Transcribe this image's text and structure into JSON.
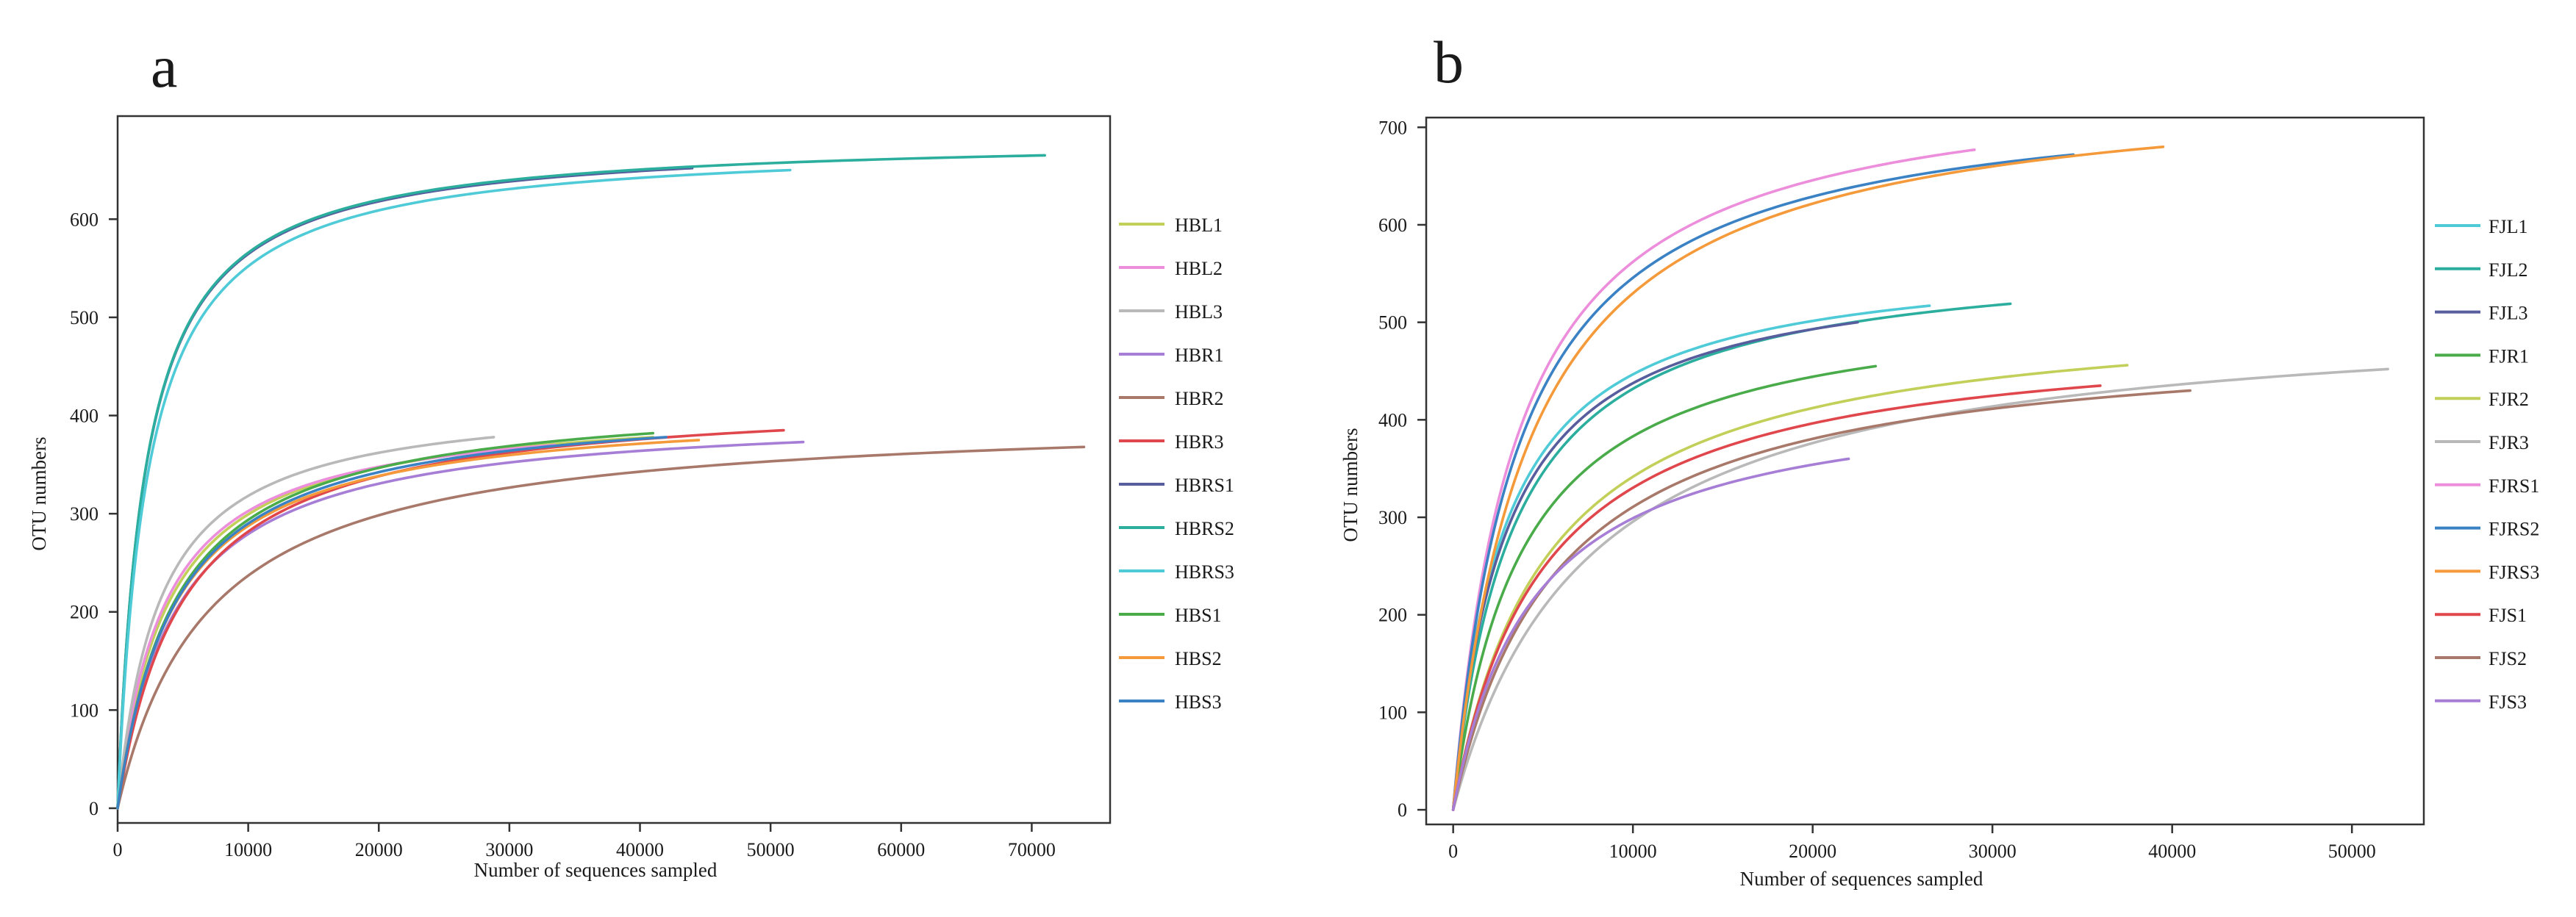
{
  "chart_data": [
    {
      "panel_label": "a",
      "type": "line",
      "xlabel": "Number of sequences sampled",
      "ylabel": "OTU numbers",
      "xlim": [
        0,
        76000
      ],
      "ylim": [
        -15,
        705
      ],
      "xticks": [
        0,
        10000,
        20000,
        30000,
        40000,
        50000,
        60000,
        70000
      ],
      "yticks": [
        0,
        100,
        200,
        300,
        400,
        500,
        600
      ],
      "legend_position": "right",
      "series": [
        {
          "name": "HBL1",
          "color": "#c2cf58",
          "max_x": 41000,
          "final_y": 378,
          "s0": 3800
        },
        {
          "name": "HBL2",
          "color": "#ec8edb",
          "max_x": 33500,
          "final_y": 370,
          "s0": 3500
        },
        {
          "name": "HBL3",
          "color": "#b9b9b9",
          "max_x": 28800,
          "final_y": 378,
          "s0": 3200
        },
        {
          "name": "HBR1",
          "color": "#a77ed6",
          "max_x": 52500,
          "final_y": 373,
          "s0": 4500
        },
        {
          "name": "HBR2",
          "color": "#a8796a",
          "max_x": 74000,
          "final_y": 368,
          "s0": 7000
        },
        {
          "name": "HBR3",
          "color": "#e0474c",
          "max_x": 51000,
          "final_y": 385,
          "s0": 5000
        },
        {
          "name": "HBRS1",
          "color": "#575d9d",
          "max_x": 44000,
          "final_y": 652,
          "s0": 2100
        },
        {
          "name": "HBRS2",
          "color": "#2bae9d",
          "max_x": 71000,
          "final_y": 665,
          "s0": 2100
        },
        {
          "name": "HBRS3",
          "color": "#4fcbd8",
          "max_x": 51500,
          "final_y": 650,
          "s0": 2300
        },
        {
          "name": "HBS1",
          "color": "#4aab4a",
          "max_x": 41000,
          "final_y": 382,
          "s0": 4400
        },
        {
          "name": "HBS2",
          "color": "#f59a3a",
          "max_x": 44500,
          "final_y": 375,
          "s0": 4300
        },
        {
          "name": "HBS3",
          "color": "#3b82c4",
          "max_x": 42000,
          "final_y": 378,
          "s0": 4400
        }
      ]
    },
    {
      "panel_label": "b",
      "type": "line",
      "xlabel": "Number of sequences sampled",
      "ylabel": "OTU numbers",
      "xlim": [
        -1500,
        54000
      ],
      "ylim": [
        -15,
        710
      ],
      "xticks": [
        0,
        10000,
        20000,
        30000,
        40000,
        50000
      ],
      "yticks": [
        0,
        100,
        200,
        300,
        400,
        500,
        600,
        700
      ],
      "legend_position": "right",
      "series": [
        {
          "name": "FJL1",
          "color": "#4fcbd8",
          "max_x": 26500,
          "final_y": 517,
          "s0": 2800
        },
        {
          "name": "FJL2",
          "color": "#2bae9d",
          "max_x": 31000,
          "final_y": 519,
          "s0": 3300
        },
        {
          "name": "FJL3",
          "color": "#575d9d",
          "max_x": 22500,
          "final_y": 500,
          "s0": 2900
        },
        {
          "name": "FJR1",
          "color": "#4aab4a",
          "max_x": 23500,
          "final_y": 455,
          "s0": 3800
        },
        {
          "name": "FJR2",
          "color": "#c2cf58",
          "max_x": 37500,
          "final_y": 456,
          "s0": 5200
        },
        {
          "name": "FJR3",
          "color": "#b9b9b9",
          "max_x": 52000,
          "final_y": 452,
          "s0": 7500
        },
        {
          "name": "FJRS1",
          "color": "#ec8edb",
          "max_x": 29000,
          "final_y": 677,
          "s0": 3500
        },
        {
          "name": "FJRS2",
          "color": "#3b82c4",
          "max_x": 34500,
          "final_y": 672,
          "s0": 3600
        },
        {
          "name": "FJRS3",
          "color": "#f59a3a",
          "max_x": 39500,
          "final_y": 680,
          "s0": 4200
        },
        {
          "name": "FJS1",
          "color": "#e0474c",
          "max_x": 36000,
          "final_y": 435,
          "s0": 5000
        },
        {
          "name": "FJS2",
          "color": "#a8796a",
          "max_x": 41000,
          "final_y": 430,
          "s0": 5800
        },
        {
          "name": "FJS3",
          "color": "#a77ed6",
          "max_x": 22000,
          "final_y": 360,
          "s0": 4500
        }
      ]
    }
  ]
}
